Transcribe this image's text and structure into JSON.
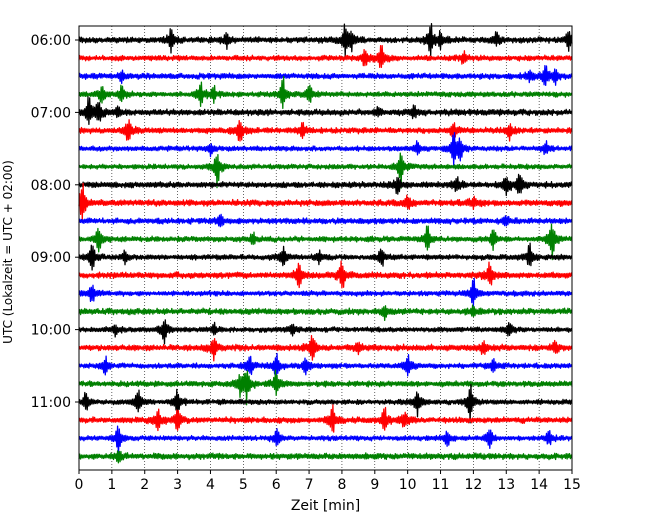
{
  "chart_data": {
    "type": "line",
    "xlabel": "Zeit  [min]",
    "ylabel": "UTC (Lokalzeit = UTC + 02:00)",
    "xlim": [
      0,
      15
    ],
    "x_ticks": [
      0,
      1,
      2,
      3,
      4,
      5,
      6,
      7,
      8,
      9,
      10,
      11,
      12,
      13,
      14,
      15
    ],
    "x_tick_labels": [
      "0",
      "1",
      "2",
      "3",
      "4",
      "5",
      "6",
      "7",
      "8",
      "9",
      "10",
      "11",
      "12",
      "13",
      "14",
      "15"
    ],
    "y_tick_labels": [
      "06:00",
      "07:00",
      "08:00",
      "09:00",
      "10:00",
      "11:00"
    ],
    "grid": "vertical-dotted",
    "series_colors": [
      "#000000",
      "#ff0000",
      "#0000ff",
      "#008000"
    ],
    "traces": [
      {
        "start": "06:00",
        "color": "#000000",
        "events": [
          [
            2.8,
            0.9
          ],
          [
            4.5,
            0.7
          ],
          [
            8.1,
            1.2
          ],
          [
            8.3,
            0.6
          ],
          [
            10.7,
            1.3
          ],
          [
            11.0,
            0.7
          ],
          [
            12.7,
            0.6
          ],
          [
            14.9,
            0.8
          ]
        ]
      },
      {
        "start": "06:15",
        "color": "#ff0000",
        "events": [
          [
            8.7,
            0.8
          ],
          [
            9.2,
            1.1
          ],
          [
            11.7,
            0.5
          ]
        ]
      },
      {
        "start": "06:30",
        "color": "#0000ff",
        "events": [
          [
            1.3,
            0.4
          ],
          [
            13.7,
            0.5
          ],
          [
            14.2,
            0.9
          ],
          [
            14.5,
            0.5
          ]
        ]
      },
      {
        "start": "06:45",
        "color": "#008000",
        "events": [
          [
            0.7,
            0.7
          ],
          [
            1.3,
            0.7
          ],
          [
            3.7,
            1.0
          ],
          [
            4.1,
            0.6
          ],
          [
            6.2,
            1.4
          ],
          [
            7.0,
            0.8
          ]
        ]
      },
      {
        "start": "07:00",
        "color": "#000000",
        "events": [
          [
            0.3,
            1.2
          ],
          [
            0.6,
            0.8
          ],
          [
            1.2,
            0.4
          ],
          [
            9.1,
            0.4
          ],
          [
            10.2,
            0.5
          ]
        ]
      },
      {
        "start": "07:15",
        "color": "#ff0000",
        "events": [
          [
            1.5,
            0.9
          ],
          [
            4.9,
            1.0
          ],
          [
            6.8,
            0.9
          ],
          [
            11.4,
            0.6
          ],
          [
            13.1,
            0.6
          ]
        ]
      },
      {
        "start": "07:30",
        "color": "#0000ff",
        "events": [
          [
            4.0,
            0.5
          ],
          [
            10.3,
            0.5
          ],
          [
            11.4,
            1.4
          ],
          [
            11.6,
            0.8
          ],
          [
            14.2,
            0.5
          ]
        ]
      },
      {
        "start": "07:45",
        "color": "#008000",
        "events": [
          [
            4.2,
            1.5
          ],
          [
            9.8,
            1.6
          ]
        ]
      },
      {
        "start": "08:00",
        "color": "#000000",
        "events": [
          [
            9.7,
            0.8
          ],
          [
            11.5,
            0.6
          ],
          [
            13.0,
            0.9
          ],
          [
            13.4,
            1.0
          ]
        ]
      },
      {
        "start": "08:15",
        "color": "#ff0000",
        "events": [
          [
            0.1,
            1.6
          ],
          [
            10.0,
            0.6
          ],
          [
            12.0,
            0.5
          ]
        ]
      },
      {
        "start": "08:30",
        "color": "#0000ff",
        "events": [
          [
            4.3,
            0.5
          ],
          [
            13.0,
            0.4
          ]
        ]
      },
      {
        "start": "08:45",
        "color": "#008000",
        "events": [
          [
            0.6,
            1.0
          ],
          [
            5.3,
            0.5
          ],
          [
            10.6,
            1.0
          ],
          [
            12.6,
            0.8
          ],
          [
            14.4,
            1.5
          ]
        ]
      },
      {
        "start": "09:00",
        "color": "#000000",
        "events": [
          [
            0.4,
            1.2
          ],
          [
            1.4,
            0.5
          ],
          [
            6.2,
            0.8
          ],
          [
            7.3,
            0.5
          ],
          [
            9.2,
            0.8
          ],
          [
            13.7,
            1.1
          ]
        ]
      },
      {
        "start": "09:15",
        "color": "#ff0000",
        "events": [
          [
            6.7,
            1.0
          ],
          [
            8.0,
            1.3
          ],
          [
            12.5,
            1.0
          ]
        ]
      },
      {
        "start": "09:30",
        "color": "#0000ff",
        "events": [
          [
            0.4,
            0.8
          ],
          [
            12.0,
            1.2
          ]
        ]
      },
      {
        "start": "09:45",
        "color": "#008000",
        "events": [
          [
            9.3,
            0.6
          ],
          [
            12.0,
            0.5
          ]
        ]
      },
      {
        "start": "10:00",
        "color": "#000000",
        "events": [
          [
            1.1,
            0.5
          ],
          [
            2.6,
            1.2
          ],
          [
            4.1,
            0.5
          ],
          [
            6.5,
            0.5
          ],
          [
            13.1,
            0.6
          ]
        ]
      },
      {
        "start": "10:15",
        "color": "#ff0000",
        "events": [
          [
            4.1,
            0.9
          ],
          [
            7.1,
            1.0
          ],
          [
            8.5,
            0.6
          ],
          [
            12.3,
            0.6
          ],
          [
            14.5,
            0.5
          ]
        ]
      },
      {
        "start": "10:30",
        "color": "#0000ff",
        "events": [
          [
            0.8,
            0.7
          ],
          [
            5.2,
            0.9
          ],
          [
            6.0,
            1.1
          ],
          [
            6.9,
            0.7
          ],
          [
            10.0,
            0.9
          ],
          [
            12.6,
            0.7
          ]
        ]
      },
      {
        "start": "10:45",
        "color": "#008000",
        "events": [
          [
            4.9,
            0.8
          ],
          [
            5.1,
            1.5
          ],
          [
            6.0,
            1.1
          ]
        ]
      },
      {
        "start": "11:00",
        "color": "#000000",
        "events": [
          [
            0.2,
            0.8
          ],
          [
            1.8,
            1.2
          ],
          [
            3.0,
            1.0
          ],
          [
            10.3,
            1.2
          ],
          [
            11.9,
            1.6
          ]
        ]
      },
      {
        "start": "11:15",
        "color": "#ff0000",
        "events": [
          [
            2.4,
            1.1
          ],
          [
            3.0,
            0.9
          ],
          [
            7.7,
            1.2
          ],
          [
            9.3,
            1.0
          ],
          [
            9.9,
            0.7
          ]
        ]
      },
      {
        "start": "11:30",
        "color": "#0000ff",
        "events": [
          [
            1.2,
            1.3
          ],
          [
            6.0,
            0.8
          ],
          [
            11.2,
            0.6
          ],
          [
            12.5,
            1.0
          ],
          [
            14.3,
            0.6
          ]
        ]
      },
      {
        "start": "11:45",
        "color": "#008000",
        "events": [
          [
            1.2,
            0.6
          ]
        ]
      }
    ]
  }
}
